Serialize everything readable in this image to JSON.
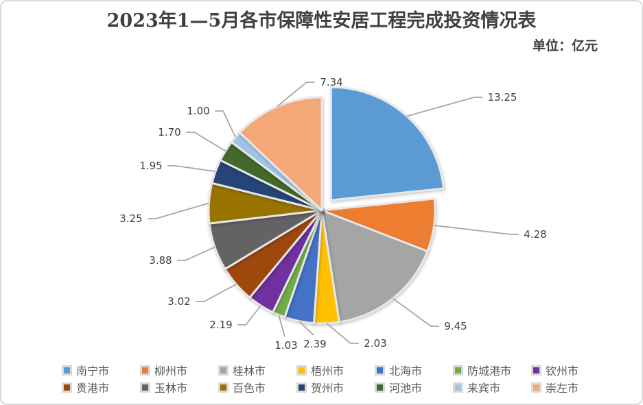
{
  "header": {
    "title": "2023年1—5月各市保障性安居工程完成投资情况表",
    "unit_label": "单位：亿元"
  },
  "chart_data": {
    "type": "pie",
    "title": "2023年1—5月各市保障性安居工程完成投资情况表",
    "unit": "亿元",
    "categories": [
      "南宁市",
      "柳州市",
      "桂林市",
      "梧州市",
      "北海市",
      "防城港市",
      "钦州市",
      "贵港市",
      "玉林市",
      "百色市",
      "贺州市",
      "河池市",
      "来宾市",
      "崇左市"
    ],
    "values": [
      13.25,
      4.28,
      9.45,
      2.03,
      2.39,
      1.03,
      2.19,
      3.02,
      3.88,
      3.25,
      1.95,
      1.7,
      1.0,
      7.34
    ],
    "values_display": [
      "13.25",
      "4.28",
      "9.45",
      "2.03",
      "2.39",
      "1.03",
      "2.19",
      "3.02",
      "3.88",
      "3.25",
      "1.95",
      "1.70",
      "1.00",
      "7.34"
    ],
    "colors": [
      "#5B9BD5",
      "#ED7D31",
      "#A5A5A5",
      "#FFC000",
      "#4472C4",
      "#70AD47",
      "#7030A0",
      "#9E480E",
      "#636363",
      "#997300",
      "#264478",
      "#43682B",
      "#9DC3E6",
      "#F4A877"
    ],
    "slice_border_color": "#E8E8E8",
    "leader_line_color": "#A6A6A6",
    "label_color": "#404040",
    "legend_text_color": "#595959",
    "legend_position": "bottom",
    "legend_rows": 2,
    "exploded_slice": "南宁市",
    "start_angle": "top",
    "direction": "clockwise",
    "data_labels": "outside-end with leader lines"
  }
}
